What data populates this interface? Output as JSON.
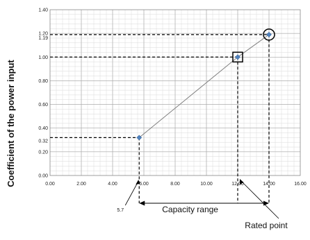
{
  "chart_data": {
    "type": "scatter",
    "ylabel": "Coefficient of the power input",
    "xlim": [
      0,
      16
    ],
    "ylim": [
      0,
      1.4
    ],
    "x_major_step": 2,
    "y_major_step": 0.2,
    "x_minor_step": 0.4,
    "y_minor_step": 0.04,
    "x_ticks": [
      "0.00",
      "2.00",
      "4.00",
      "6.00",
      "8.00",
      "10.00",
      "12.00",
      "14.00",
      "16.00"
    ],
    "y_ticks": [
      "0.00",
      "0.20",
      "0.40",
      "0.60",
      "0.80",
      "1.00",
      "1.20",
      "1.40"
    ],
    "extra_y_labels": [
      {
        "value": 0.32,
        "text": "0.32"
      },
      {
        "value": 1.19,
        "text": "1.19"
      }
    ],
    "grid": true,
    "line_color": "#7f7f7f",
    "marker_color": "#4f81bd",
    "points": [
      {
        "x": 5.7,
        "y": 0.32,
        "highlight": "none"
      },
      {
        "x": 12,
        "y": 1.0,
        "highlight": "square"
      },
      {
        "x": 14,
        "y": 1.19,
        "highlight": "circle"
      }
    ],
    "annotations": {
      "x_min_label": "5.7",
      "range_label": "Capacity range",
      "rated_label": "Rated point"
    }
  }
}
